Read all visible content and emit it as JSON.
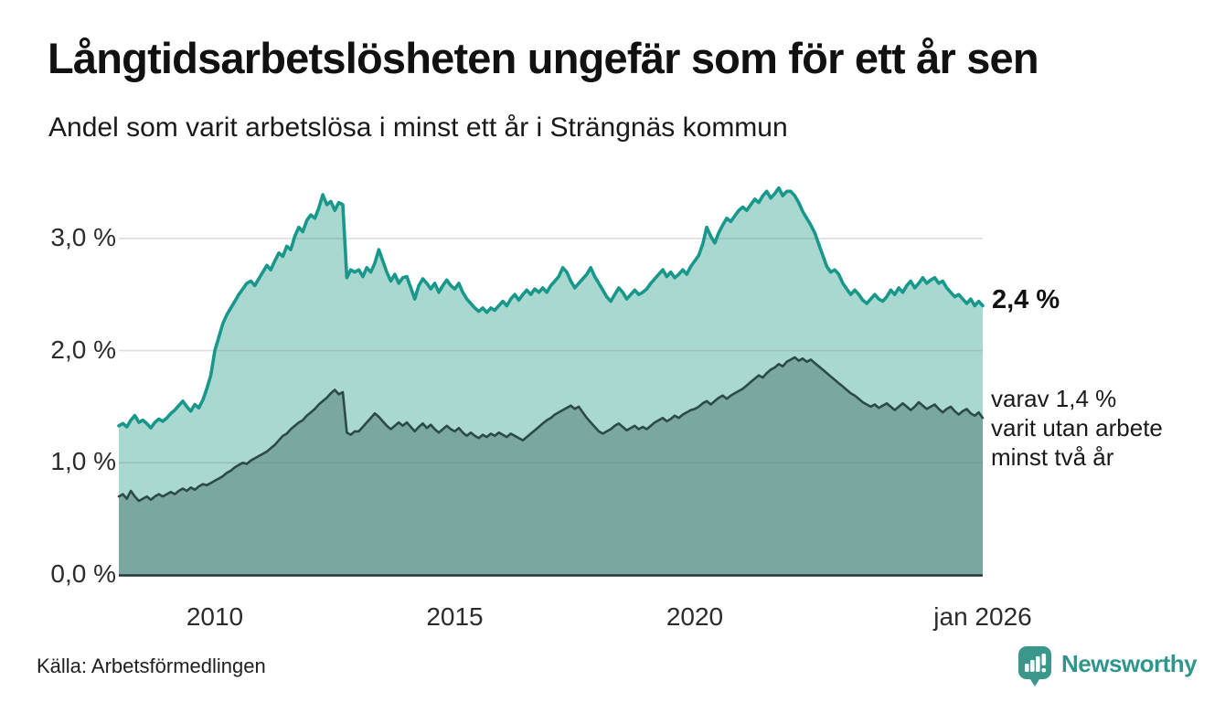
{
  "header": {
    "title": "Långtidsarbetslösheten ungefär som för ett år sen",
    "subtitle": "Andel som varit arbetslösa i minst ett år i Strängnäs kommun"
  },
  "annotations": {
    "latest_value": "2,4 %",
    "secondary_line1": "varav 1,4 %",
    "secondary_line2": "varit utan arbete",
    "secondary_line3": "minst två år"
  },
  "footer": {
    "source": "Källa: Arbetsförmedlingen",
    "brand": "Newsworthy"
  },
  "colors": {
    "line_primary": "#18978b",
    "fill_primary": "#a9d8d1",
    "line_secondary": "#2c4a46",
    "fill_secondary": "#7aa8a1",
    "gridline": "rgba(90,100,98,0.20)",
    "baseline": "#233734",
    "brand_teal": "#2f968c",
    "badge_teal": "#3b968c"
  },
  "chart_data": {
    "type": "area",
    "title": "Långtidsarbetslösheten ungefär som för ett år sen",
    "subtitle": "Andel som varit arbetslösa i minst ett år i Strängnäs kommun",
    "xlabel": "",
    "ylabel": "",
    "xlim": [
      2008.0,
      2026.0
    ],
    "ylim": [
      0,
      3.5
    ],
    "x_start": 2008.0,
    "x_step": 0.0833333,
    "x_unit": "year (monthly points, jan 2008 – jan 2026)",
    "y_unit": "percent",
    "grid": true,
    "y_ticks": [
      {
        "v": 0,
        "label": "0,0 %"
      },
      {
        "v": 1,
        "label": "1,0 %"
      },
      {
        "v": 2,
        "label": "2,0 %"
      },
      {
        "v": 3,
        "label": "3,0 %"
      }
    ],
    "x_ticks": [
      {
        "t": 2010,
        "label": "2010"
      },
      {
        "t": 2015,
        "label": "2015"
      },
      {
        "t": 2020,
        "label": "2020"
      },
      {
        "t": 2026,
        "label": "jan 2026"
      }
    ],
    "series": [
      {
        "name": "Arbetslösa minst ett år",
        "latest_label": "2,4 %",
        "color": "#18978b",
        "fill": "#a9d8d1",
        "values": [
          1.33,
          1.35,
          1.32,
          1.38,
          1.42,
          1.36,
          1.38,
          1.35,
          1.31,
          1.36,
          1.39,
          1.37,
          1.4,
          1.44,
          1.47,
          1.51,
          1.55,
          1.5,
          1.46,
          1.52,
          1.49,
          1.56,
          1.66,
          1.78,
          2.0,
          2.12,
          2.24,
          2.32,
          2.38,
          2.44,
          2.5,
          2.55,
          2.6,
          2.62,
          2.58,
          2.64,
          2.7,
          2.76,
          2.72,
          2.8,
          2.87,
          2.84,
          2.93,
          2.9,
          3.02,
          3.1,
          3.06,
          3.16,
          3.21,
          3.18,
          3.27,
          3.39,
          3.3,
          3.33,
          3.25,
          3.32,
          3.3,
          2.65,
          2.72,
          2.7,
          2.72,
          2.66,
          2.74,
          2.7,
          2.78,
          2.9,
          2.8,
          2.7,
          2.62,
          2.68,
          2.6,
          2.65,
          2.66,
          2.56,
          2.46,
          2.58,
          2.64,
          2.6,
          2.55,
          2.6,
          2.52,
          2.58,
          2.63,
          2.58,
          2.55,
          2.6,
          2.52,
          2.46,
          2.42,
          2.38,
          2.35,
          2.38,
          2.34,
          2.38,
          2.36,
          2.4,
          2.44,
          2.4,
          2.46,
          2.5,
          2.45,
          2.5,
          2.54,
          2.5,
          2.55,
          2.52,
          2.56,
          2.52,
          2.58,
          2.62,
          2.66,
          2.74,
          2.7,
          2.62,
          2.56,
          2.6,
          2.64,
          2.68,
          2.74,
          2.66,
          2.6,
          2.54,
          2.48,
          2.44,
          2.5,
          2.56,
          2.52,
          2.46,
          2.5,
          2.54,
          2.5,
          2.52,
          2.55,
          2.6,
          2.64,
          2.68,
          2.72,
          2.66,
          2.7,
          2.65,
          2.68,
          2.72,
          2.68,
          2.75,
          2.8,
          2.85,
          2.95,
          3.1,
          3.02,
          2.96,
          3.05,
          3.12,
          3.18,
          3.15,
          3.2,
          3.25,
          3.28,
          3.25,
          3.3,
          3.35,
          3.32,
          3.38,
          3.42,
          3.36,
          3.4,
          3.45,
          3.38,
          3.42,
          3.42,
          3.38,
          3.32,
          3.24,
          3.18,
          3.12,
          3.05,
          2.95,
          2.85,
          2.75,
          2.7,
          2.72,
          2.68,
          2.6,
          2.55,
          2.5,
          2.54,
          2.5,
          2.45,
          2.42,
          2.46,
          2.5,
          2.46,
          2.44,
          2.48,
          2.54,
          2.5,
          2.56,
          2.52,
          2.58,
          2.62,
          2.56,
          2.6,
          2.65,
          2.6,
          2.63,
          2.65,
          2.6,
          2.62,
          2.56,
          2.52,
          2.48,
          2.5,
          2.46,
          2.42,
          2.46,
          2.4,
          2.44,
          2.4
        ]
      },
      {
        "name": "varav utan arbete minst två år",
        "latest_label": "1,4 %",
        "color": "#2c4a46",
        "fill": "#7aa8a1",
        "values": [
          0.7,
          0.72,
          0.68,
          0.75,
          0.7,
          0.66,
          0.68,
          0.7,
          0.67,
          0.7,
          0.72,
          0.7,
          0.72,
          0.74,
          0.72,
          0.75,
          0.77,
          0.75,
          0.78,
          0.76,
          0.79,
          0.81,
          0.8,
          0.82,
          0.84,
          0.86,
          0.88,
          0.91,
          0.93,
          0.96,
          0.98,
          1.0,
          0.99,
          1.02,
          1.04,
          1.06,
          1.08,
          1.1,
          1.13,
          1.16,
          1.2,
          1.24,
          1.26,
          1.3,
          1.33,
          1.36,
          1.38,
          1.42,
          1.45,
          1.48,
          1.52,
          1.55,
          1.58,
          1.62,
          1.65,
          1.61,
          1.63,
          1.27,
          1.25,
          1.28,
          1.28,
          1.32,
          1.36,
          1.4,
          1.44,
          1.41,
          1.37,
          1.33,
          1.3,
          1.33,
          1.36,
          1.33,
          1.36,
          1.32,
          1.28,
          1.32,
          1.35,
          1.31,
          1.34,
          1.3,
          1.27,
          1.3,
          1.33,
          1.3,
          1.28,
          1.31,
          1.27,
          1.24,
          1.27,
          1.24,
          1.22,
          1.25,
          1.23,
          1.26,
          1.24,
          1.27,
          1.25,
          1.23,
          1.26,
          1.24,
          1.22,
          1.2,
          1.23,
          1.26,
          1.29,
          1.32,
          1.35,
          1.38,
          1.4,
          1.43,
          1.45,
          1.47,
          1.49,
          1.51,
          1.48,
          1.5,
          1.45,
          1.4,
          1.36,
          1.32,
          1.28,
          1.26,
          1.28,
          1.3,
          1.33,
          1.35,
          1.32,
          1.29,
          1.31,
          1.33,
          1.3,
          1.32,
          1.3,
          1.33,
          1.36,
          1.38,
          1.4,
          1.37,
          1.39,
          1.42,
          1.4,
          1.43,
          1.45,
          1.47,
          1.48,
          1.5,
          1.53,
          1.55,
          1.52,
          1.55,
          1.58,
          1.6,
          1.57,
          1.6,
          1.62,
          1.64,
          1.66,
          1.69,
          1.72,
          1.75,
          1.78,
          1.76,
          1.8,
          1.83,
          1.85,
          1.88,
          1.86,
          1.9,
          1.92,
          1.94,
          1.91,
          1.93,
          1.9,
          1.92,
          1.89,
          1.86,
          1.83,
          1.8,
          1.77,
          1.74,
          1.71,
          1.68,
          1.65,
          1.62,
          1.6,
          1.57,
          1.54,
          1.52,
          1.5,
          1.52,
          1.49,
          1.51,
          1.53,
          1.5,
          1.47,
          1.5,
          1.53,
          1.5,
          1.47,
          1.5,
          1.54,
          1.51,
          1.48,
          1.5,
          1.52,
          1.48,
          1.45,
          1.48,
          1.5,
          1.46,
          1.43,
          1.46,
          1.48,
          1.44,
          1.42,
          1.45,
          1.4
        ]
      }
    ]
  }
}
